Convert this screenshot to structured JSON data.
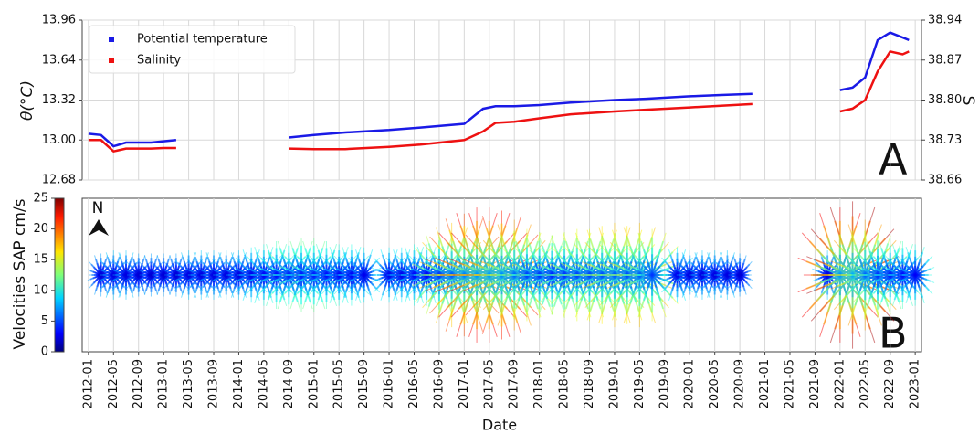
{
  "chart_data": [
    {
      "type": "line",
      "ylabel": "θ(°C)",
      "y2label": "S",
      "panel_label": "A",
      "legend": "upper left",
      "grid": true,
      "ylim": [
        12.68,
        13.96
      ],
      "yticks": [
        12.68,
        {
          "value": 13,
          "label": "13.00"
        },
        13.32,
        13.64,
        13.96
      ],
      "y2lim": [
        38.66,
        38.94
      ],
      "y2ticks": [
        38.66,
        38.73,
        {
          "value": 38.8,
          "label": "38.80"
        },
        38.87,
        38.94
      ],
      "x": [
        "2012-01",
        "2012-03",
        "2012-05",
        "2012-07",
        "2012-09",
        "2012-11",
        "2013-01",
        "2013-03",
        "2013-05",
        "2014-09",
        "2015-01",
        "2015-06",
        "2016-01",
        "2016-06",
        "2017-01",
        "2017-04",
        "2017-06",
        "2017-09",
        "2018-01",
        "2018-06",
        "2019-01",
        "2019-06",
        "2020-01",
        "2020-06",
        "2020-11",
        "2021-06",
        "2022-01",
        "2022-03",
        "2022-05",
        "2022-07",
        "2022-09",
        "2022-11",
        "2022-12"
      ],
      "series": [
        {
          "name": "Potential temperature",
          "color": "#1a1ae6",
          "values": [
            13.05,
            13.04,
            12.95,
            12.98,
            12.98,
            12.98,
            12.99,
            13.0,
            null,
            13.02,
            13.04,
            13.06,
            13.08,
            13.1,
            13.13,
            13.25,
            13.27,
            13.27,
            13.28,
            13.3,
            13.32,
            13.33,
            13.35,
            13.36,
            13.37,
            null,
            13.4,
            13.42,
            13.5,
            13.8,
            13.86,
            13.82,
            13.8
          ]
        },
        {
          "name": "Salinity",
          "color": "#ee1111",
          "axis": "y2",
          "values": [
            38.73,
            38.73,
            38.71,
            38.715,
            38.715,
            38.715,
            38.716,
            38.716,
            null,
            38.715,
            38.714,
            38.714,
            38.718,
            38.722,
            38.73,
            38.745,
            38.76,
            38.762,
            38.768,
            38.775,
            38.78,
            38.783,
            38.787,
            38.79,
            38.793,
            null,
            38.78,
            38.785,
            38.8,
            38.85,
            38.885,
            38.88,
            38.885
          ]
        }
      ]
    },
    {
      "type": "quiver",
      "panel_label": "B",
      "xlabel": "Date",
      "colorbar_label": "Velocities SAP cm/s",
      "north_label": "N",
      "colormap": "jet",
      "grid": true,
      "clim": [
        0,
        25
      ],
      "cticks": [
        0,
        5,
        10,
        15,
        20,
        25
      ],
      "xlim": [
        "2011-12",
        "2023-02"
      ],
      "xticks": [
        "2012-01",
        "2012-05",
        "2012-09",
        "2013-01",
        "2013-05",
        "2013-09",
        "2014-01",
        "2014-05",
        "2014-09",
        "2015-01",
        "2015-05",
        "2015-09",
        "2016-01",
        "2016-05",
        "2016-09",
        "2017-01",
        "2017-05",
        "2017-09",
        "2018-01",
        "2018-05",
        "2018-09",
        "2019-01",
        "2019-05",
        "2019-09",
        "2020-01",
        "2020-05",
        "2020-09",
        "2021-01",
        "2021-05",
        "2021-09",
        "2022-01",
        "2022-05",
        "2022-09",
        "2023-01"
      ],
      "x": [
        "2012-03",
        "2012-05",
        "2012-07",
        "2012-09",
        "2012-11",
        "2013-01",
        "2013-03",
        "2013-05",
        "2013-07",
        "2013-09",
        "2013-11",
        "2014-01",
        "2014-03",
        "2014-05",
        "2014-07",
        "2014-09",
        "2014-11",
        "2015-01",
        "2015-03",
        "2015-05",
        "2015-07",
        "2015-09",
        "2015-11",
        "2016-01",
        "2016-03",
        "2016-05",
        "2016-07",
        "2016-09",
        "2016-11",
        "2017-01",
        "2017-03",
        "2017-05",
        "2017-07",
        "2017-09",
        "2017-11",
        "2018-01",
        "2018-03",
        "2018-05",
        "2018-07",
        "2018-09",
        "2018-11",
        "2019-01",
        "2019-03",
        "2019-05",
        "2019-07",
        "2019-09",
        "2019-11",
        "2020-01",
        "2020-03",
        "2020-05",
        "2020-07",
        "2020-09",
        "2020-11",
        "2021-01",
        "2021-03",
        "2021-05",
        "2021-07",
        "2021-09",
        "2021-11",
        "2022-01",
        "2022-03",
        "2022-05",
        "2022-07",
        "2022-09",
        "2022-11",
        "2023-01"
      ],
      "values": [
        7,
        8,
        8,
        7,
        7,
        7,
        7,
        8,
        8,
        8,
        8,
        8,
        9,
        10,
        11,
        12,
        12,
        12,
        11,
        10,
        10,
        9,
        null,
        9,
        9,
        10,
        10,
        14,
        17,
        20,
        22,
        22,
        21,
        18,
        15,
        14,
        13,
        14,
        15,
        15,
        16,
        17,
        16,
        17,
        15,
        null,
        9,
        8,
        8,
        8,
        8,
        7,
        null,
        null,
        null,
        null,
        null,
        null,
        8,
        22,
        24,
        18,
        14,
        12,
        11,
        10
      ]
    }
  ]
}
